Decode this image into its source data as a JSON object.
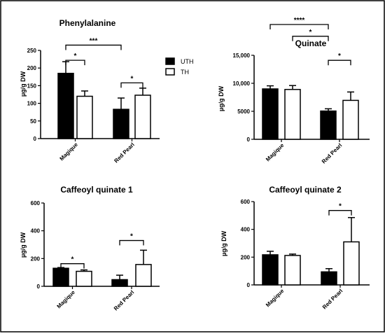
{
  "legend": [
    {
      "name": "UTH",
      "fill": "#000000"
    },
    {
      "name": "TH",
      "fill": "#ffffff"
    }
  ],
  "chart_data": [
    {
      "type": "bar",
      "title": "Phenylalanine",
      "ylabel": "µg/g DW",
      "categories": [
        "Magique",
        "Red Pearl"
      ],
      "ylim": [
        0,
        250
      ],
      "yticks": [
        "0",
        "50",
        "100",
        "150",
        "200",
        "250"
      ],
      "series": [
        {
          "name": "UTH",
          "values": [
            185,
            83
          ],
          "errors": [
            33,
            32
          ]
        },
        {
          "name": "TH",
          "values": [
            120,
            123
          ],
          "errors": [
            15,
            20
          ]
        }
      ],
      "significance": [
        {
          "label": "*",
          "from": [
            0,
            0
          ],
          "to": [
            0,
            1
          ],
          "y": 222
        },
        {
          "label": "***",
          "from": [
            0,
            0
          ],
          "to": [
            1,
            0
          ],
          "y": 265
        },
        {
          "label": "*",
          "from": [
            1,
            0
          ],
          "to": [
            1,
            1
          ],
          "y": 158
        }
      ]
    },
    {
      "type": "bar",
      "title": "Quinate",
      "ylabel": "µg/g DW",
      "categories": [
        "Magique",
        "Red Pearl"
      ],
      "ylim": [
        0,
        15000
      ],
      "yticks": [
        "0",
        "5000",
        "10,000",
        "15,000"
      ],
      "series": [
        {
          "name": "UTH",
          "values": [
            9000,
            5050
          ],
          "errors": [
            550,
            400
          ]
        },
        {
          "name": "TH",
          "values": [
            8900,
            6950
          ],
          "errors": [
            700,
            1500
          ]
        }
      ],
      "significance": [
        {
          "label": "****",
          "from": [
            0,
            0
          ],
          "to": [
            1,
            0
          ],
          "y": 20500
        },
        {
          "label": "*",
          "from": [
            0,
            1
          ],
          "to": [
            1,
            0
          ],
          "y": 18400
        },
        {
          "label": "*",
          "from": [
            1,
            0
          ],
          "to": [
            1,
            1
          ],
          "y": 14100
        }
      ]
    },
    {
      "type": "bar",
      "title": "Caffeoyl quinate 1",
      "ylabel": "µg/g DW",
      "categories": [
        "Magique",
        "Red Pearl"
      ],
      "ylim": [
        0,
        600
      ],
      "yticks": [
        "0",
        "200",
        "400",
        "600"
      ],
      "series": [
        {
          "name": "UTH",
          "values": [
            130,
            48
          ],
          "errors": [
            5,
            32
          ]
        },
        {
          "name": "TH",
          "values": [
            108,
            157
          ],
          "errors": [
            10,
            103
          ]
        }
      ],
      "significance": [
        {
          "label": "*",
          "from": [
            0,
            0
          ],
          "to": [
            0,
            1
          ],
          "y": 163
        },
        {
          "label": "*",
          "from": [
            1,
            0
          ],
          "to": [
            1,
            1
          ],
          "y": 330
        }
      ]
    },
    {
      "type": "bar",
      "title": "Caffeoyl quinate 2",
      "ylabel": "µg/g DW",
      "categories": [
        "Magique",
        "Red Pearl"
      ],
      "ylim": [
        0,
        600
      ],
      "yticks": [
        "0",
        "200",
        "400",
        "600"
      ],
      "series": [
        {
          "name": "UTH",
          "values": [
            217,
            94
          ],
          "errors": [
            25,
            23
          ]
        },
        {
          "name": "TH",
          "values": [
            212,
            310
          ],
          "errors": [
            10,
            175
          ]
        }
      ],
      "significance": [
        {
          "label": "*",
          "from": [
            1,
            0
          ],
          "to": [
            1,
            1
          ],
          "y": 536
        }
      ]
    }
  ]
}
